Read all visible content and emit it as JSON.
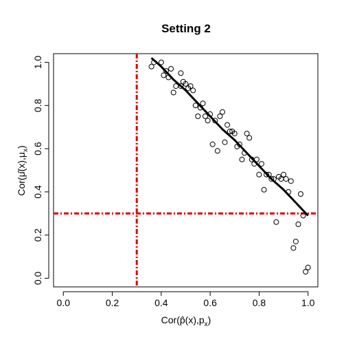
{
  "chart_data": {
    "type": "scatter",
    "title": "Setting 2",
    "xlabel": "Cor(p̂(x),p",
    "xlabel_sub": "x",
    "xlabel_close": ")",
    "ylabel": "Cor(μ̂(x),μ",
    "ylabel_sub": "x",
    "ylabel_close": ")",
    "xlim": [
      -0.04,
      1.04
    ],
    "ylim": [
      -0.04,
      1.04
    ],
    "xticks": [
      0.0,
      0.2,
      0.4,
      0.6,
      0.8,
      1.0
    ],
    "xtick_labels": [
      "0.0",
      "0.2",
      "0.4",
      "0.6",
      "0.8",
      "1.0"
    ],
    "yticks": [
      0.0,
      0.2,
      0.4,
      0.6,
      0.8,
      1.0
    ],
    "ytick_labels": [
      "0.0",
      "0.2",
      "0.4",
      "0.6",
      "0.8",
      "1.0"
    ],
    "points": [
      [
        0.36,
        0.98
      ],
      [
        0.37,
        1.0
      ],
      [
        0.4,
        1.0
      ],
      [
        0.41,
        0.94
      ],
      [
        0.42,
        0.96
      ],
      [
        0.43,
        0.93
      ],
      [
        0.44,
        0.97
      ],
      [
        0.45,
        0.86
      ],
      [
        0.46,
        0.89
      ],
      [
        0.48,
        0.89
      ],
      [
        0.48,
        0.95
      ],
      [
        0.49,
        0.91
      ],
      [
        0.5,
        0.9
      ],
      [
        0.51,
        0.88
      ],
      [
        0.52,
        0.89
      ],
      [
        0.53,
        0.87
      ],
      [
        0.54,
        0.8
      ],
      [
        0.55,
        0.75
      ],
      [
        0.56,
        0.79
      ],
      [
        0.57,
        0.81
      ],
      [
        0.58,
        0.75
      ],
      [
        0.59,
        0.73
      ],
      [
        0.6,
        0.76
      ],
      [
        0.61,
        0.62
      ],
      [
        0.62,
        0.73
      ],
      [
        0.63,
        0.59
      ],
      [
        0.64,
        0.75
      ],
      [
        0.65,
        0.77
      ],
      [
        0.66,
        0.63
      ],
      [
        0.67,
        0.71
      ],
      [
        0.68,
        0.68
      ],
      [
        0.69,
        0.68
      ],
      [
        0.7,
        0.67
      ],
      [
        0.71,
        0.61
      ],
      [
        0.72,
        0.62
      ],
      [
        0.73,
        0.55
      ],
      [
        0.74,
        0.58
      ],
      [
        0.75,
        0.67
      ],
      [
        0.76,
        0.65
      ],
      [
        0.77,
        0.55
      ],
      [
        0.78,
        0.53
      ],
      [
        0.79,
        0.55
      ],
      [
        0.8,
        0.48
      ],
      [
        0.81,
        0.53
      ],
      [
        0.82,
        0.41
      ],
      [
        0.83,
        0.48
      ],
      [
        0.84,
        0.48
      ],
      [
        0.85,
        0.46
      ],
      [
        0.86,
        0.46
      ],
      [
        0.87,
        0.26
      ],
      [
        0.88,
        0.47
      ],
      [
        0.89,
        0.46
      ],
      [
        0.9,
        0.48
      ],
      [
        0.91,
        0.46
      ],
      [
        0.92,
        0.4
      ],
      [
        0.93,
        0.45
      ],
      [
        0.94,
        0.14
      ],
      [
        0.95,
        0.17
      ],
      [
        0.96,
        0.25
      ],
      [
        0.97,
        0.39
      ],
      [
        0.98,
        0.29
      ],
      [
        0.99,
        0.03
      ],
      [
        1.0,
        0.05
      ]
    ],
    "fit_line": [
      [
        0.36,
        1.02
      ],
      [
        0.4,
        0.98
      ],
      [
        0.45,
        0.92
      ],
      [
        0.5,
        0.87
      ],
      [
        0.55,
        0.81
      ],
      [
        0.6,
        0.75
      ],
      [
        0.65,
        0.69
      ],
      [
        0.7,
        0.64
      ],
      [
        0.75,
        0.58
      ],
      [
        0.8,
        0.52
      ],
      [
        0.85,
        0.46
      ],
      [
        0.9,
        0.41
      ],
      [
        0.95,
        0.35
      ],
      [
        1.0,
        0.29
      ]
    ],
    "ref_lines": {
      "vertical_x": 0.3,
      "horizontal_y": 0.3,
      "color": "#dd0000",
      "style": "dashed"
    },
    "point_color": "#000000",
    "line_color": "#000000",
    "grid": false,
    "legend": "none"
  }
}
